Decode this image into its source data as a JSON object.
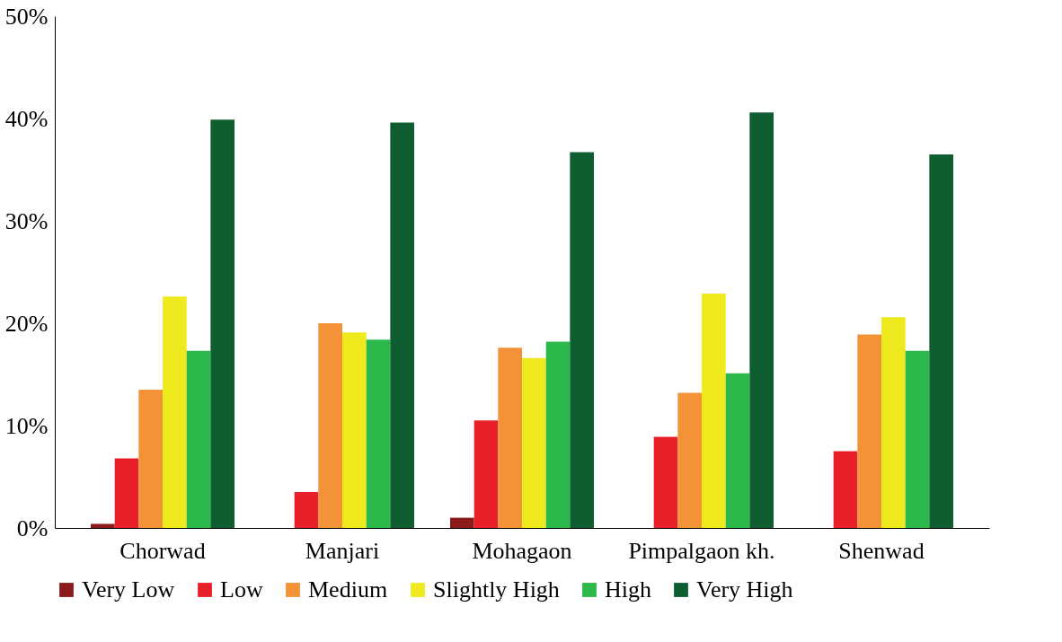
{
  "chart_data": {
    "type": "bar",
    "categories": [
      "Chorwad",
      "Manjari",
      "Mohagaon",
      "Pimpalgaon kh.",
      "Shenwad"
    ],
    "series": [
      {
        "name": "Very Low",
        "color": "#8b1a1a",
        "values": [
          0.4,
          0,
          1.0,
          0,
          0
        ]
      },
      {
        "name": "Low",
        "color": "#e8202a",
        "values": [
          6.8,
          3.5,
          10.5,
          8.9,
          7.5
        ]
      },
      {
        "name": "Medium",
        "color": "#f39237",
        "values": [
          13.5,
          20.0,
          17.6,
          13.2,
          18.9
        ]
      },
      {
        "name": "Slightly High",
        "color": "#eeea1e",
        "values": [
          22.6,
          19.1,
          16.6,
          22.9,
          20.6
        ]
      },
      {
        "name": "High",
        "color": "#2db84b",
        "values": [
          17.3,
          18.4,
          18.2,
          15.1,
          17.3
        ]
      },
      {
        "name": "Very High",
        "color": "#0e5e32",
        "values": [
          39.9,
          39.6,
          36.7,
          40.6,
          36.5
        ]
      }
    ],
    "ylim": [
      0,
      50
    ],
    "yticks": [
      {
        "value": 0,
        "label": "0%"
      },
      {
        "value": 10,
        "label": "10%"
      },
      {
        "value": 20,
        "label": "20%"
      },
      {
        "value": 30,
        "label": "30%"
      },
      {
        "value": 40,
        "label": "40%"
      },
      {
        "value": 50,
        "label": "50%"
      }
    ],
    "grid": false,
    "legend": "bottom"
  }
}
